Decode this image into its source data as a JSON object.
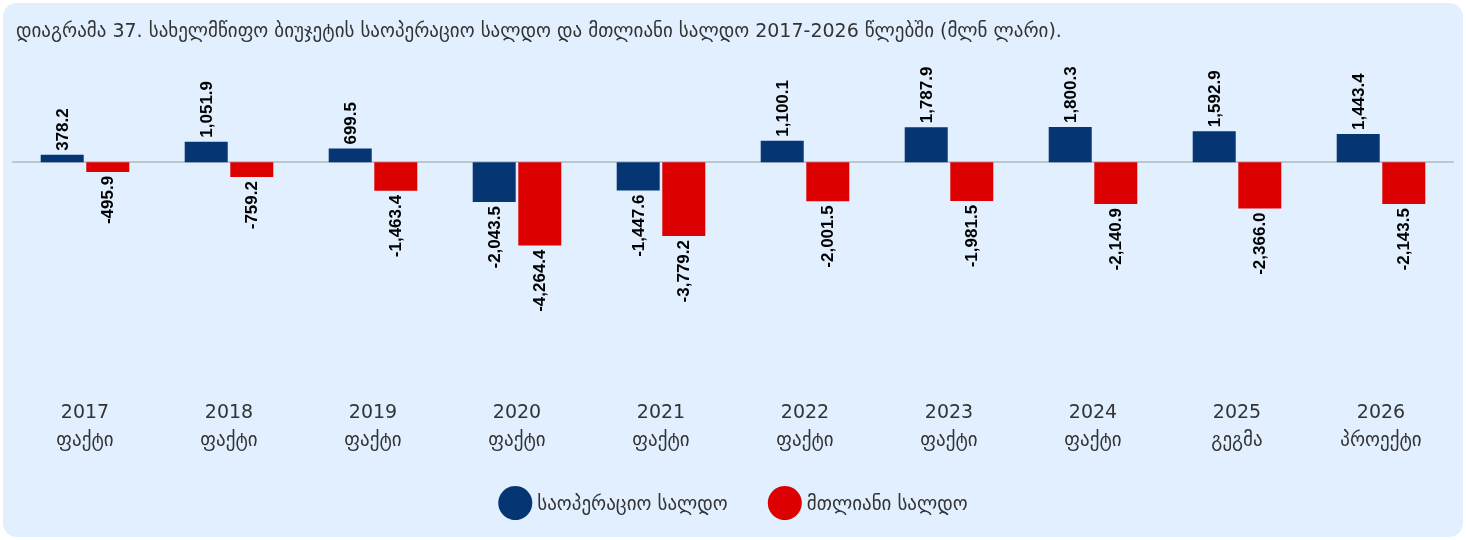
{
  "chart_data": {
    "type": "bar",
    "title": "დიაგრამა 37. სახელმწიფო ბიუჯეტის საოპერაციო სალდო და მთლიანი სალდო 2017-2026 წლებში (მლნ ლარი).",
    "categories": [
      "2017\nფაქტი",
      "2018\nფაქტი",
      "2019\nფაქტი",
      "2020\nფაქტი",
      "2021\nფაქტი",
      "2022\nფაქტი",
      "2023\nფაქტი",
      "2024\nფაქტი",
      "2025\nგეგმა",
      "2026\nპროექტი"
    ],
    "series": [
      {
        "name": "საოპერაციო სალდო",
        "color": "#053573",
        "values": [
          378.2,
          1051.9,
          699.5,
          -2043.5,
          -1447.6,
          1100.1,
          1787.9,
          1800.3,
          1592.9,
          1443.4
        ],
        "value_labels": [
          "378.2",
          "1,051.9",
          "699.5",
          "-2,043.5",
          "-1,447.6",
          "1,100.1",
          "1,787.9",
          "1,800.3",
          "1,592.9",
          "1,443.4"
        ]
      },
      {
        "name": "მთლიანი სალდო",
        "color": "#dd0000",
        "values": [
          -495.9,
          -759.2,
          -1463.4,
          -4264.4,
          -3779.2,
          -2001.5,
          -1981.5,
          -2140.9,
          -2366.0,
          -2143.5
        ],
        "value_labels": [
          "-495.9",
          "-759.2",
          "-1,463.4",
          "-4,264.4",
          "-3,779.2",
          "-2,001.5",
          "-1,981.5",
          "-2,140.9",
          "-2,366.0",
          "-2,143.5"
        ]
      }
    ],
    "legend": "bottom",
    "grid": false
  }
}
